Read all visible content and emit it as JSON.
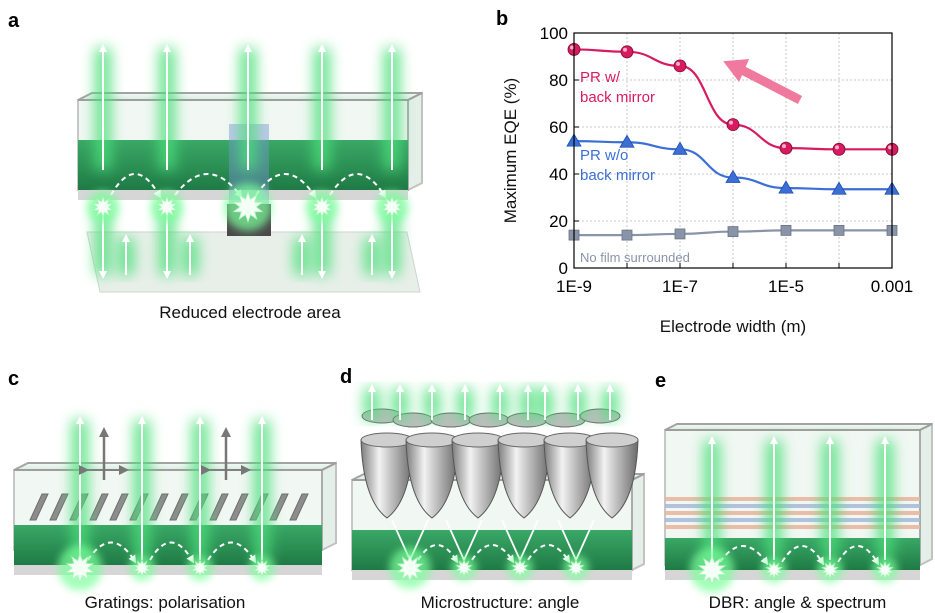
{
  "panels": {
    "a": {
      "letter": "a",
      "caption": "Reduced electrode area"
    },
    "b": {
      "letter": "b"
    },
    "c": {
      "letter": "c",
      "caption": "Gratings: polarisation"
    },
    "d": {
      "letter": "d",
      "caption": "Microstructure: angle"
    },
    "e": {
      "letter": "e",
      "caption": "DBR: angle & spectrum"
    }
  },
  "chart_data": {
    "type": "line",
    "xlabel": "Electrode width (m)",
    "ylabel": "Maximum EQE (%)",
    "xscale": "log",
    "xlim": [
      1e-09,
      0.001
    ],
    "ylim": [
      0,
      100
    ],
    "grid": true,
    "x_ticks": [
      "1E-9",
      "1E-7",
      "1E-5",
      "0.001"
    ],
    "y_ticks": [
      "0",
      "20",
      "40",
      "60",
      "80",
      "100"
    ],
    "x": [
      1e-09,
      1e-08,
      1e-07,
      1e-06,
      1e-05,
      0.0001,
      0.001
    ],
    "series": [
      {
        "name": "PR w/ back mirror",
        "label_lines": [
          "PR w/",
          "back mirror"
        ],
        "color": "#d81b60",
        "marker": "circle",
        "values": [
          93,
          92,
          86,
          61,
          51,
          50.5,
          50.5
        ]
      },
      {
        "name": "PR w/o back mirror",
        "label_lines": [
          "PR w/o",
          "back mirror"
        ],
        "color": "#3c6fd6",
        "marker": "triangle",
        "values": [
          54,
          53.5,
          50.5,
          38.5,
          34,
          33.5,
          33.5
        ]
      },
      {
        "name": "No film surrounded",
        "label_lines": [
          "No film surrounded"
        ],
        "color": "#8a94a8",
        "marker": "square",
        "values": [
          14,
          14,
          14.5,
          15.5,
          16,
          16,
          16
        ]
      }
    ],
    "arrow_color": "#f0799e"
  }
}
